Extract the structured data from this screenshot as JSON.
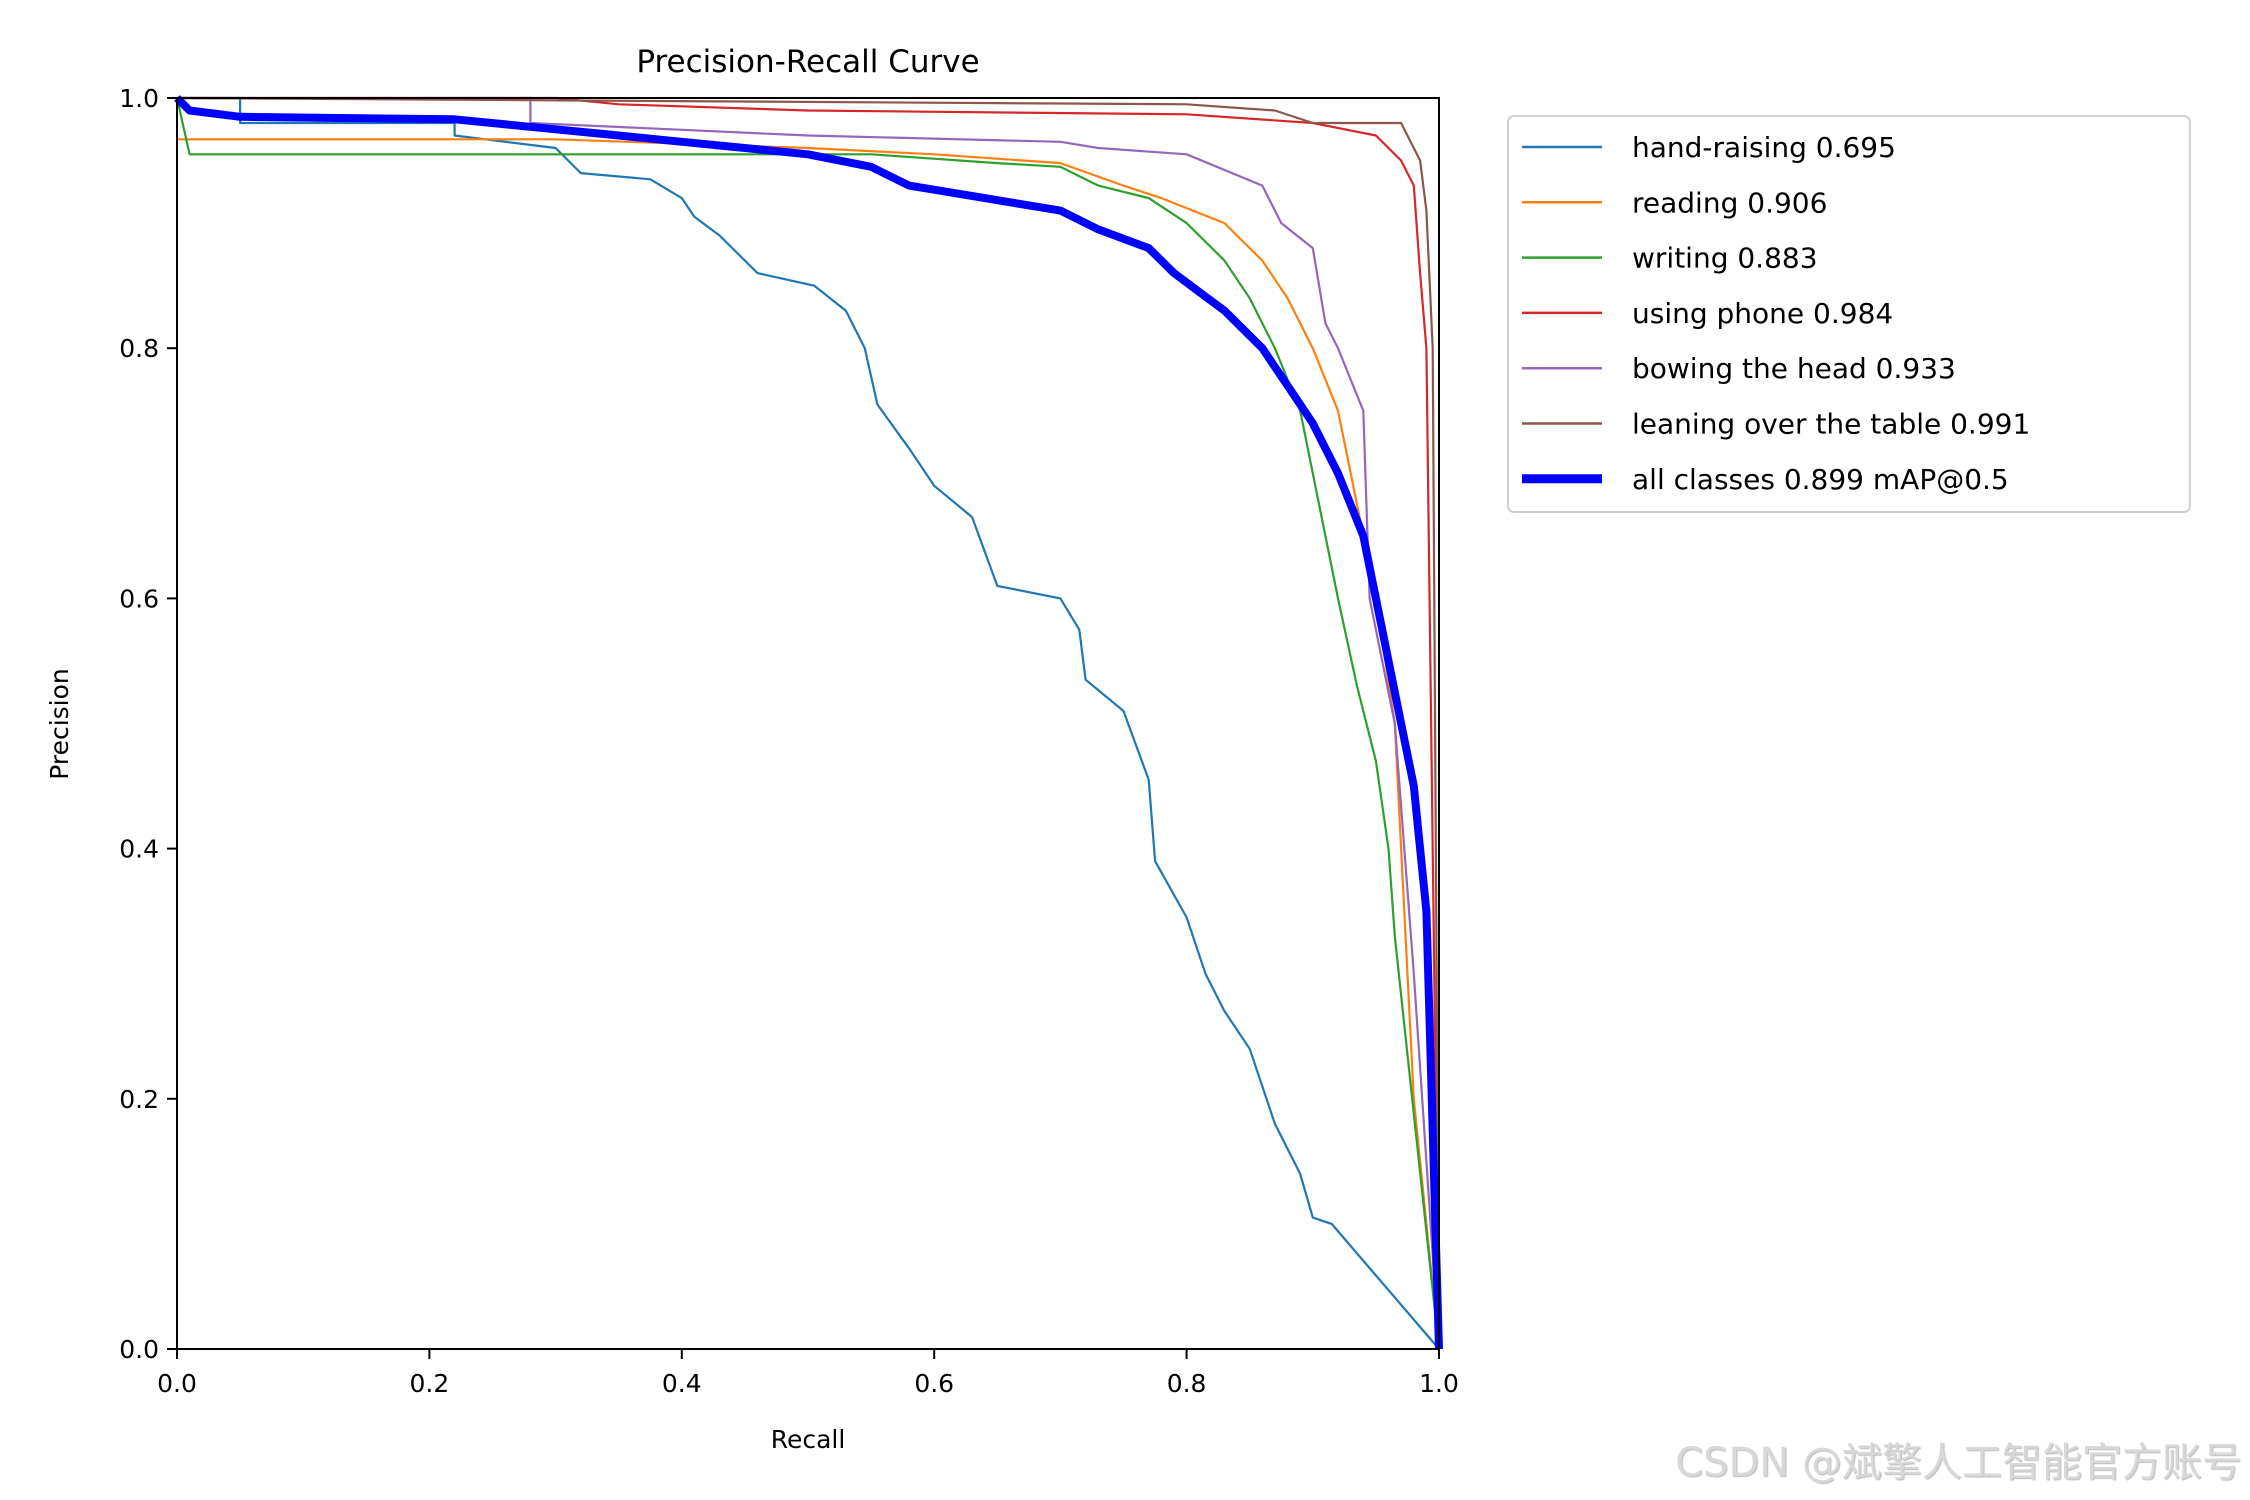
{
  "chart_data": {
    "type": "line",
    "title": "Precision-Recall Curve",
    "xlabel": "Recall",
    "ylabel": "Precision",
    "xlim": [
      0,
      1
    ],
    "ylim": [
      0,
      1
    ],
    "xticks": [
      "0.0",
      "0.2",
      "0.4",
      "0.6",
      "0.8",
      "1.0"
    ],
    "yticks": [
      "0.0",
      "0.2",
      "0.4",
      "0.6",
      "0.8",
      "1.0"
    ],
    "grid": false,
    "legend_placement": "outside-upper-right",
    "series": [
      {
        "name": "hand-raising 0.695",
        "color": "#1f77b4",
        "x": [
          0,
          0.05,
          0.05,
          0.22,
          0.22,
          0.3,
          0.32,
          0.375,
          0.4,
          0.41,
          0.43,
          0.46,
          0.505,
          0.53,
          0.545,
          0.555,
          0.58,
          0.6,
          0.63,
          0.65,
          0.7,
          0.715,
          0.72,
          0.75,
          0.77,
          0.775,
          0.8,
          0.815,
          0.83,
          0.85,
          0.87,
          0.89,
          0.9,
          0.915,
          1.0
        ],
        "y": [
          1.0,
          1.0,
          0.98,
          0.98,
          0.97,
          0.96,
          0.94,
          0.935,
          0.92,
          0.905,
          0.89,
          0.86,
          0.85,
          0.83,
          0.8,
          0.755,
          0.72,
          0.69,
          0.665,
          0.61,
          0.6,
          0.575,
          0.535,
          0.51,
          0.455,
          0.39,
          0.345,
          0.3,
          0.27,
          0.24,
          0.18,
          0.14,
          0.105,
          0.1,
          0.0
        ]
      },
      {
        "name": "reading 0.906",
        "color": "#ff7f0e",
        "x": [
          0,
          0.3,
          0.5,
          0.6,
          0.7,
          0.75,
          0.78,
          0.83,
          0.86,
          0.88,
          0.9,
          0.92,
          0.93,
          0.95,
          0.965,
          0.97,
          0.98,
          1.0
        ],
        "y": [
          0.967,
          0.967,
          0.96,
          0.955,
          0.948,
          0.93,
          0.92,
          0.9,
          0.87,
          0.84,
          0.8,
          0.75,
          0.7,
          0.6,
          0.5,
          0.4,
          0.2,
          0.0
        ]
      },
      {
        "name": "writing 0.883",
        "color": "#2ca02c",
        "x": [
          0,
          0.01,
          0.55,
          0.65,
          0.7,
          0.73,
          0.77,
          0.8,
          0.83,
          0.85,
          0.87,
          0.89,
          0.9,
          0.92,
          0.935,
          0.95,
          0.96,
          0.965,
          1.0
        ],
        "y": [
          1.0,
          0.955,
          0.955,
          0.948,
          0.945,
          0.93,
          0.92,
          0.9,
          0.87,
          0.84,
          0.8,
          0.75,
          0.7,
          0.6,
          0.53,
          0.47,
          0.4,
          0.33,
          0.0
        ]
      },
      {
        "name": "using phone 0.984",
        "color": "#d62728",
        "x": [
          0,
          0.3,
          0.35,
          0.5,
          0.8,
          0.9,
          0.95,
          0.97,
          0.98,
          0.985,
          0.99,
          1.0
        ],
        "y": [
          1.0,
          1.0,
          0.995,
          0.99,
          0.987,
          0.98,
          0.97,
          0.95,
          0.93,
          0.86,
          0.8,
          0.0
        ]
      },
      {
        "name": "bowing the head 0.933",
        "color": "#9467bd",
        "x": [
          0,
          0.28,
          0.28,
          0.5,
          0.7,
          0.73,
          0.8,
          0.86,
          0.875,
          0.9,
          0.91,
          0.92,
          0.94,
          0.945,
          0.965,
          0.98,
          1.0
        ],
        "y": [
          1.0,
          1.0,
          0.98,
          0.97,
          0.965,
          0.96,
          0.955,
          0.93,
          0.9,
          0.88,
          0.82,
          0.8,
          0.75,
          0.6,
          0.5,
          0.3,
          0.0
        ]
      },
      {
        "name": "leaning over the table 0.991",
        "color": "#8c564b",
        "x": [
          0,
          0.8,
          0.87,
          0.9,
          0.97,
          0.985,
          0.99,
          0.995,
          1.0
        ],
        "y": [
          1.0,
          0.995,
          0.99,
          0.98,
          0.98,
          0.95,
          0.91,
          0.8,
          0.0
        ]
      },
      {
        "name": "all classes 0.899 mAP@0.5",
        "color": "#0000ff",
        "x": [
          0,
          0.01,
          0.05,
          0.22,
          0.3,
          0.35,
          0.4,
          0.45,
          0.5,
          0.55,
          0.58,
          0.64,
          0.7,
          0.73,
          0.77,
          0.79,
          0.81,
          0.83,
          0.86,
          0.88,
          0.9,
          0.92,
          0.94,
          0.95,
          0.96,
          0.97,
          0.98,
          0.99,
          1.0
        ],
        "y": [
          1.0,
          0.99,
          0.985,
          0.983,
          0.975,
          0.97,
          0.965,
          0.96,
          0.955,
          0.945,
          0.93,
          0.92,
          0.91,
          0.895,
          0.88,
          0.86,
          0.845,
          0.83,
          0.8,
          0.77,
          0.74,
          0.7,
          0.65,
          0.6,
          0.55,
          0.5,
          0.45,
          0.35,
          0.0
        ]
      }
    ]
  },
  "watermark": "CSDN @斌擎人工智能官方账号"
}
